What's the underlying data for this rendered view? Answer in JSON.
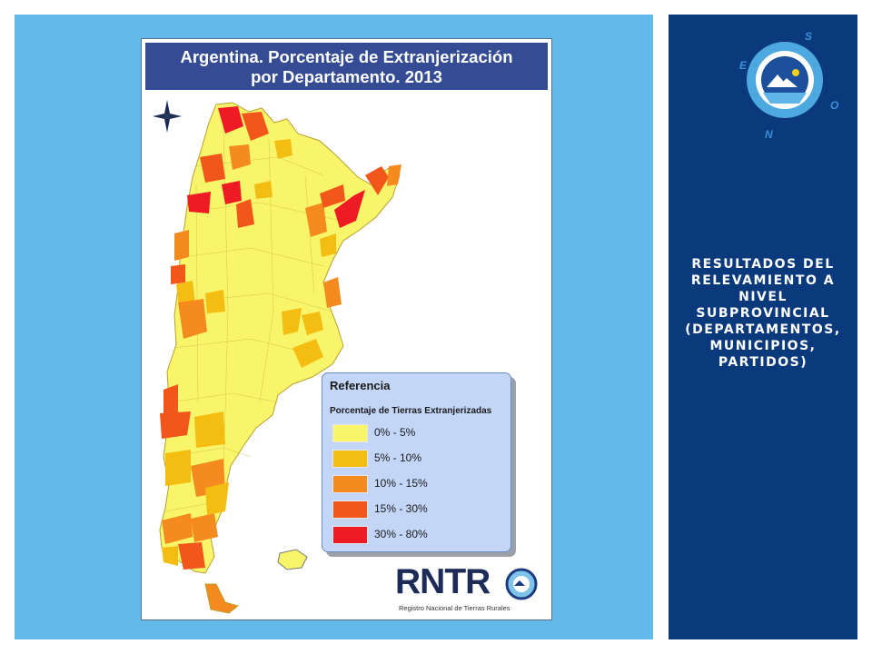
{
  "slide": {
    "heading": "RESULTADOS DEL RELEVAMIENTO A NIVEL SUBPROVINCIAL (DEPARTAMENTOS, MUNICIPIOS, PARTIDOS)"
  },
  "map": {
    "title_line1": "Argentina. Porcentaje de Extranjerización",
    "title_line2": "por Departamento. 2013",
    "legend": {
      "title": "Referencia",
      "subtitle": "Porcentaje de Tierras Extranjerizadas",
      "items": [
        {
          "label": "0% - 5%",
          "color": "#f8f56a"
        },
        {
          "label": "5% - 10%",
          "color": "#f4bd12"
        },
        {
          "label": "10% - 15%",
          "color": "#f58a1f"
        },
        {
          "label": "15% - 30%",
          "color": "#f2561a"
        },
        {
          "label": "30% - 80%",
          "color": "#ee1b24"
        }
      ]
    },
    "north_arrow": "compass-rose-icon"
  },
  "logo": {
    "text": "RNTR",
    "subtitle": "Registro Nacional de Tierras Rurales",
    "compass_letters": [
      "S",
      "E",
      "O",
      "N"
    ]
  },
  "colors": {
    "left_bg": "#63b9e8",
    "right_bg": "#0b3a7c",
    "title_bar": "#354b94"
  }
}
